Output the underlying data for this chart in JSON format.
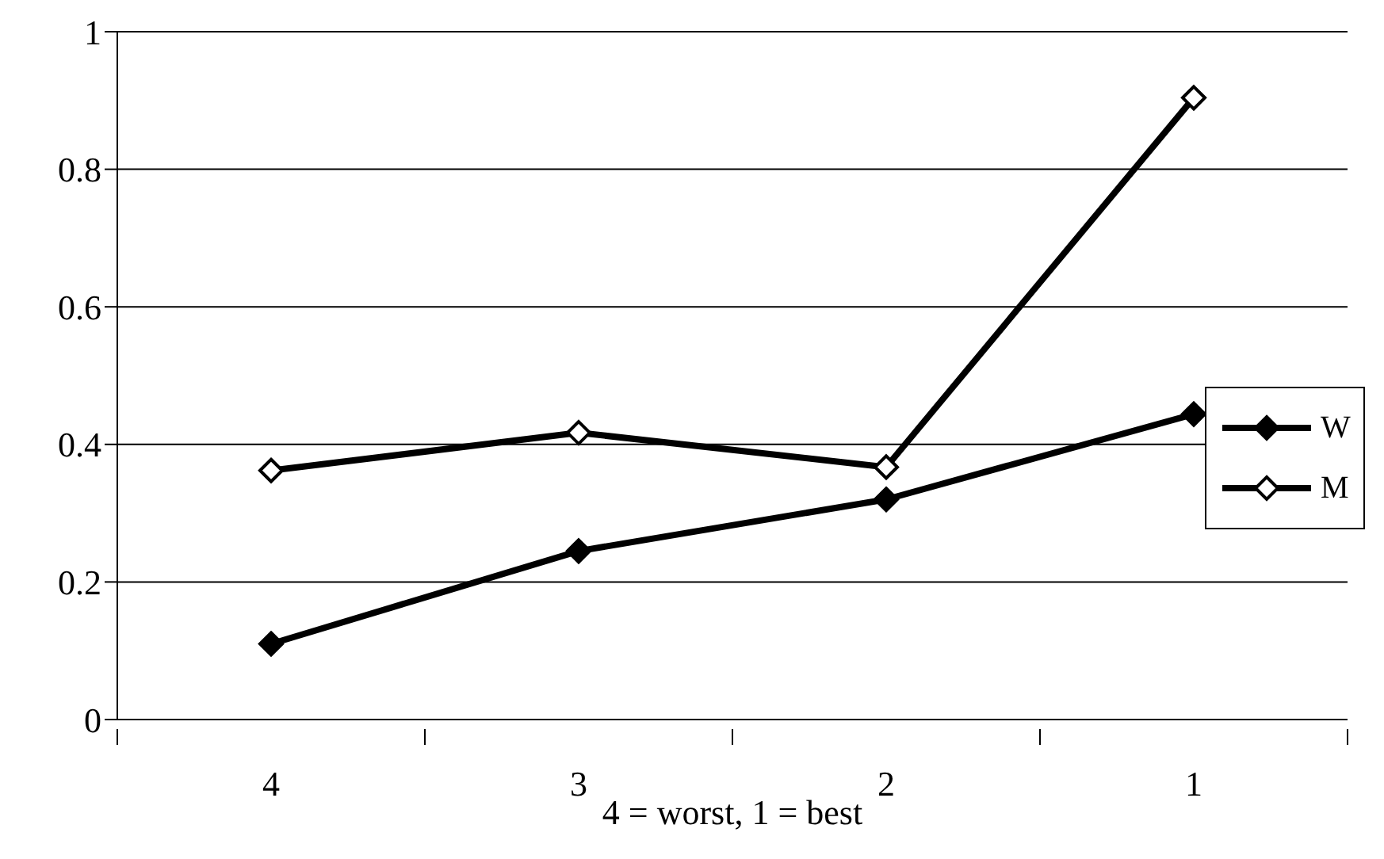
{
  "chart_data": {
    "type": "line",
    "xlabel": "4 = worst, 1 = best",
    "categories": [
      "4",
      "3",
      "2",
      "1"
    ],
    "series": [
      {
        "name": "W",
        "color": "#000000",
        "values": [
          0.11,
          0.245,
          0.32,
          0.444
        ]
      },
      {
        "name": "M",
        "color": "#000000",
        "values": [
          0.362,
          0.417,
          0.367,
          0.904
        ]
      }
    ],
    "ylim": [
      0,
      1
    ],
    "yticks": [
      0,
      0.2,
      0.4,
      0.6,
      0.8,
      1
    ],
    "grid": "y",
    "legend": "right",
    "marker": "diamond",
    "line_style": "solid"
  }
}
